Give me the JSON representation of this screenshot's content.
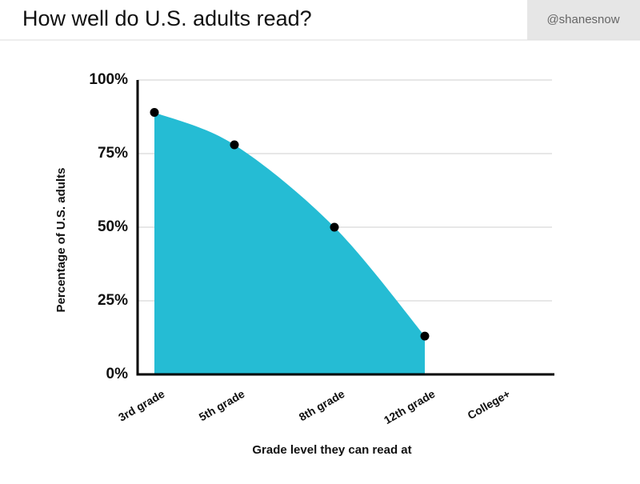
{
  "header": {
    "handle": "@shanesnow"
  },
  "chart_data": {
    "type": "area",
    "title": "How well do U.S. adults read?",
    "x_label": "Grade level they can read at",
    "y_label": "Percentage of U.S. adults",
    "categories": [
      "3rd grade",
      "5th grade",
      "8th grade",
      "12th grade",
      "College+"
    ],
    "values": [
      89,
      78,
      50,
      13,
      null
    ],
    "color": "#25bcd4",
    "marker_color": "#000000",
    "ylim": [
      0,
      100
    ],
    "yticks": [
      {
        "value": 0,
        "label": "0%"
      },
      {
        "value": 25,
        "label": "25%"
      },
      {
        "value": 50,
        "label": "50%"
      },
      {
        "value": 75,
        "label": "75%"
      },
      {
        "value": 100,
        "label": "100%"
      }
    ],
    "grid": true
  }
}
